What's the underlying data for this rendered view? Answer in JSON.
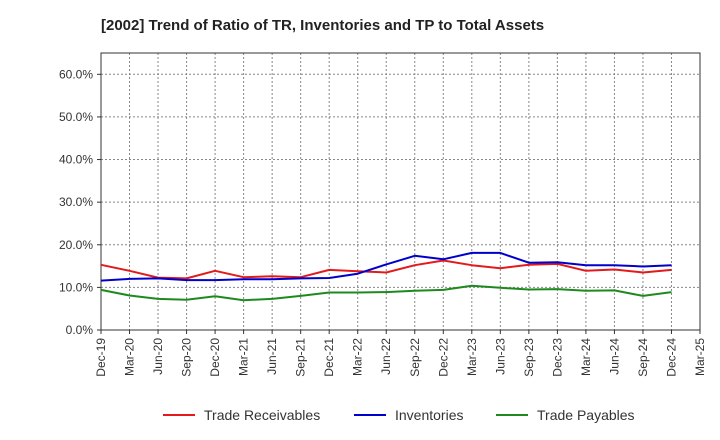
{
  "chart_data": {
    "type": "line",
    "title": "[2002]  Trend of Ratio of TR, Inventories and TP to Total Assets",
    "xlabel": "",
    "ylabel": "",
    "ylim": [
      0,
      65
    ],
    "y_ticks": [
      0,
      10,
      20,
      30,
      40,
      50,
      60
    ],
    "y_tick_labels": [
      "0.0%",
      "10.0%",
      "20.0%",
      "30.0%",
      "40.0%",
      "50.0%",
      "60.0%"
    ],
    "x_tick_labels": [
      "Dec-19",
      "Mar-20",
      "Jun-20",
      "Sep-20",
      "Dec-20",
      "Mar-21",
      "Jun-21",
      "Sep-21",
      "Dec-21",
      "Mar-22",
      "Jun-22",
      "Sep-22",
      "Dec-22",
      "Mar-23",
      "Jun-23",
      "Sep-23",
      "Dec-23",
      "Mar-24",
      "Jun-24",
      "Sep-24",
      "Dec-24",
      "Mar-25"
    ],
    "categories": [
      "Dec-19",
      "Mar-20",
      "Jun-20",
      "Sep-20",
      "Dec-20",
      "Mar-21",
      "Jun-21",
      "Sep-21",
      "Dec-21",
      "Mar-22",
      "Jun-22",
      "Sep-22",
      "Dec-22",
      "Mar-23",
      "Jun-23",
      "Sep-23",
      "Dec-23",
      "Mar-24",
      "Jun-24",
      "Sep-24",
      "Dec-24"
    ],
    "grid": true,
    "legend_position": "bottom",
    "series": [
      {
        "name": "Trade Receivables",
        "color": "#e31a1c",
        "values": [
          15.3,
          13.9,
          12.3,
          12.1,
          13.9,
          12.4,
          12.6,
          12.4,
          14.1,
          13.8,
          13.5,
          15.2,
          16.3,
          15.2,
          14.5,
          15.3,
          15.5,
          13.9,
          14.2,
          13.5,
          14.1
        ]
      },
      {
        "name": "Inventories",
        "color": "#0000cc",
        "values": [
          11.6,
          12.0,
          12.1,
          11.7,
          11.7,
          11.9,
          11.9,
          12.1,
          12.2,
          13.2,
          15.4,
          17.4,
          16.6,
          18.1,
          18.1,
          15.8,
          15.9,
          15.2,
          15.2,
          14.9,
          15.2
        ]
      },
      {
        "name": "Trade Payables",
        "color": "#1e8a1e",
        "values": [
          9.4,
          8.1,
          7.3,
          7.1,
          7.9,
          7.0,
          7.3,
          8.0,
          8.8,
          8.8,
          8.9,
          9.2,
          9.4,
          10.4,
          9.9,
          9.5,
          9.6,
          9.2,
          9.3,
          8.0,
          8.9
        ]
      }
    ]
  }
}
